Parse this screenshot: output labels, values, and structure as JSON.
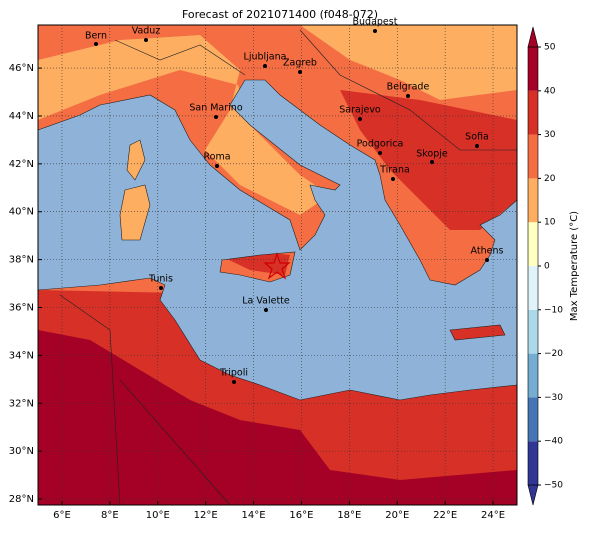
{
  "title": "Forecast of 2021071400 (f048-072)",
  "map": {
    "xlim": [
      5,
      25
    ],
    "ylim": [
      27.75,
      47.8
    ],
    "grid": true,
    "xticks": [
      {
        "value": 6,
        "label": "6°E"
      },
      {
        "value": 8,
        "label": "8°E"
      },
      {
        "value": 10,
        "label": "10°E"
      },
      {
        "value": 12,
        "label": "12°E"
      },
      {
        "value": 14,
        "label": "14°E"
      },
      {
        "value": 16,
        "label": "16°E"
      },
      {
        "value": 18,
        "label": "18°E"
      },
      {
        "value": 20,
        "label": "20°E"
      },
      {
        "value": 22,
        "label": "22°E"
      },
      {
        "value": 24,
        "label": "24°E"
      }
    ],
    "yticks": [
      {
        "value": 28,
        "label": "28°N"
      },
      {
        "value": 30,
        "label": "30°N"
      },
      {
        "value": 32,
        "label": "32°N"
      },
      {
        "value": 34,
        "label": "34°N"
      },
      {
        "value": 36,
        "label": "36°N"
      },
      {
        "value": 38,
        "label": "38°N"
      },
      {
        "value": 40,
        "label": "40°N"
      },
      {
        "value": 42,
        "label": "42°N"
      },
      {
        "value": 44,
        "label": "44°N"
      },
      {
        "value": 46,
        "label": "46°N"
      }
    ]
  },
  "cities": [
    "Bern",
    "Vaduz",
    "Budapest",
    "Ljubljana",
    "Zagreb",
    "Belgrade",
    "San Marino",
    "Sarajevo",
    "Sofia",
    "Podgorica",
    "Skopje",
    "Roma",
    "Tirana",
    "Athens",
    "Tunis",
    "La Valette",
    "Tripoli"
  ],
  "colorbar": {
    "label": "Max Temperature (°C)",
    "lim": [
      -50,
      50
    ],
    "ticks": [
      {
        "value": -50,
        "label": "−50"
      },
      {
        "value": -40,
        "label": "−40"
      },
      {
        "value": -30,
        "label": "−30"
      },
      {
        "value": -20,
        "label": "−20"
      },
      {
        "value": -10,
        "label": "−10"
      },
      0,
      10,
      20,
      30,
      40,
      50
    ],
    "colors": [
      "#313695",
      "#4575b4",
      "#74add1",
      "#abd9e9",
      "#e0f3f8",
      "#ffffbf",
      "#fdae61",
      "#f46d43",
      "#d73027",
      "#a50026"
    ],
    "under_color": "#313695",
    "over_color": "#a50026"
  }
}
